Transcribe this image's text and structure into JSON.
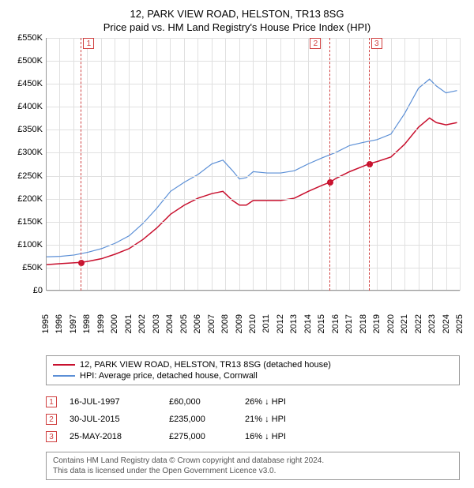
{
  "title": {
    "main": "12, PARK VIEW ROAD, HELSTON, TR13 8SG",
    "sub": "Price paid vs. HM Land Registry's House Price Index (HPI)"
  },
  "chart": {
    "type": "line",
    "background_color": "#ffffff",
    "grid_color": "#e0e0e0",
    "axis_color": "#999999",
    "y": {
      "min": 0,
      "max": 550000,
      "step": 50000,
      "ticks": [
        "£0",
        "£50K",
        "£100K",
        "£150K",
        "£200K",
        "£250K",
        "£300K",
        "£350K",
        "£400K",
        "£450K",
        "£500K",
        "£550K"
      ]
    },
    "x": {
      "min": 1995,
      "max": 2025,
      "ticks": [
        "1995",
        "1996",
        "1997",
        "1998",
        "1999",
        "2000",
        "2001",
        "2002",
        "2003",
        "2004",
        "2005",
        "2006",
        "2007",
        "2008",
        "2009",
        "2010",
        "2011",
        "2012",
        "2013",
        "2014",
        "2015",
        "2016",
        "2017",
        "2018",
        "2019",
        "2020",
        "2021",
        "2022",
        "2023",
        "2024",
        "2025"
      ]
    },
    "series": [
      {
        "name": "price_paid",
        "label": "12, PARK VIEW ROAD, HELSTON, TR13 8SG (detached house)",
        "color": "#c8102e",
        "line_width": 1.5,
        "points": [
          [
            1995.0,
            55000
          ],
          [
            1996.0,
            57000
          ],
          [
            1997.5,
            60000
          ],
          [
            1998.0,
            62000
          ],
          [
            1999.0,
            68000
          ],
          [
            2000.0,
            78000
          ],
          [
            2001.0,
            90000
          ],
          [
            2002.0,
            110000
          ],
          [
            2003.0,
            135000
          ],
          [
            2004.0,
            165000
          ],
          [
            2005.0,
            185000
          ],
          [
            2006.0,
            200000
          ],
          [
            2007.0,
            210000
          ],
          [
            2007.8,
            215000
          ],
          [
            2008.5,
            195000
          ],
          [
            2009.0,
            185000
          ],
          [
            2009.5,
            185000
          ],
          [
            2010.0,
            195000
          ],
          [
            2011.0,
            195000
          ],
          [
            2012.0,
            195000
          ],
          [
            2013.0,
            200000
          ],
          [
            2014.0,
            215000
          ],
          [
            2015.0,
            228000
          ],
          [
            2015.58,
            235000
          ],
          [
            2016.0,
            243000
          ],
          [
            2017.0,
            258000
          ],
          [
            2018.0,
            270000
          ],
          [
            2018.4,
            275000
          ],
          [
            2019.0,
            280000
          ],
          [
            2020.0,
            290000
          ],
          [
            2021.0,
            318000
          ],
          [
            2022.0,
            355000
          ],
          [
            2022.8,
            375000
          ],
          [
            2023.3,
            365000
          ],
          [
            2024.0,
            360000
          ],
          [
            2024.8,
            365000
          ]
        ]
      },
      {
        "name": "hpi",
        "label": "HPI: Average price, detached house, Cornwall",
        "color": "#5b8fd6",
        "line_width": 1.2,
        "points": [
          [
            1995.0,
            72000
          ],
          [
            1996.0,
            73000
          ],
          [
            1997.0,
            76000
          ],
          [
            1998.0,
            82000
          ],
          [
            1999.0,
            90000
          ],
          [
            2000.0,
            102000
          ],
          [
            2001.0,
            118000
          ],
          [
            2002.0,
            145000
          ],
          [
            2003.0,
            178000
          ],
          [
            2004.0,
            215000
          ],
          [
            2005.0,
            235000
          ],
          [
            2006.0,
            252000
          ],
          [
            2007.0,
            275000
          ],
          [
            2007.8,
            283000
          ],
          [
            2008.5,
            260000
          ],
          [
            2009.0,
            242000
          ],
          [
            2009.5,
            245000
          ],
          [
            2010.0,
            258000
          ],
          [
            2011.0,
            255000
          ],
          [
            2012.0,
            255000
          ],
          [
            2013.0,
            260000
          ],
          [
            2014.0,
            275000
          ],
          [
            2015.0,
            288000
          ],
          [
            2016.0,
            300000
          ],
          [
            2017.0,
            315000
          ],
          [
            2018.0,
            322000
          ],
          [
            2019.0,
            328000
          ],
          [
            2020.0,
            340000
          ],
          [
            2021.0,
            385000
          ],
          [
            2022.0,
            440000
          ],
          [
            2022.8,
            460000
          ],
          [
            2023.3,
            445000
          ],
          [
            2024.0,
            430000
          ],
          [
            2024.8,
            435000
          ]
        ]
      }
    ],
    "markers": [
      {
        "x": 1997.54,
        "y": 60000,
        "color": "#c8102e"
      },
      {
        "x": 2015.58,
        "y": 235000,
        "color": "#c8102e"
      },
      {
        "x": 2018.4,
        "y": 275000,
        "color": "#c8102e"
      }
    ],
    "events": [
      {
        "n": "1",
        "x": 1997.54,
        "box_offset": 10
      },
      {
        "n": "2",
        "x": 2015.58,
        "box_offset": -18
      },
      {
        "n": "3",
        "x": 2018.4,
        "box_offset": 10
      }
    ]
  },
  "legend": {
    "items": [
      {
        "color": "#c8102e",
        "label": "12, PARK VIEW ROAD, HELSTON, TR13 8SG (detached house)"
      },
      {
        "color": "#5b8fd6",
        "label": "HPI: Average price, detached house, Cornwall"
      }
    ]
  },
  "transactions": [
    {
      "n": "1",
      "date": "16-JUL-1997",
      "price": "£60,000",
      "pct": "26% ↓ HPI"
    },
    {
      "n": "2",
      "date": "30-JUL-2015",
      "price": "£235,000",
      "pct": "21% ↓ HPI"
    },
    {
      "n": "3",
      "date": "25-MAY-2018",
      "price": "£275,000",
      "pct": "16% ↓ HPI"
    }
  ],
  "footer": {
    "line1": "Contains HM Land Registry data © Crown copyright and database right 2024.",
    "line2": "This data is licensed under the Open Government Licence v3.0."
  }
}
